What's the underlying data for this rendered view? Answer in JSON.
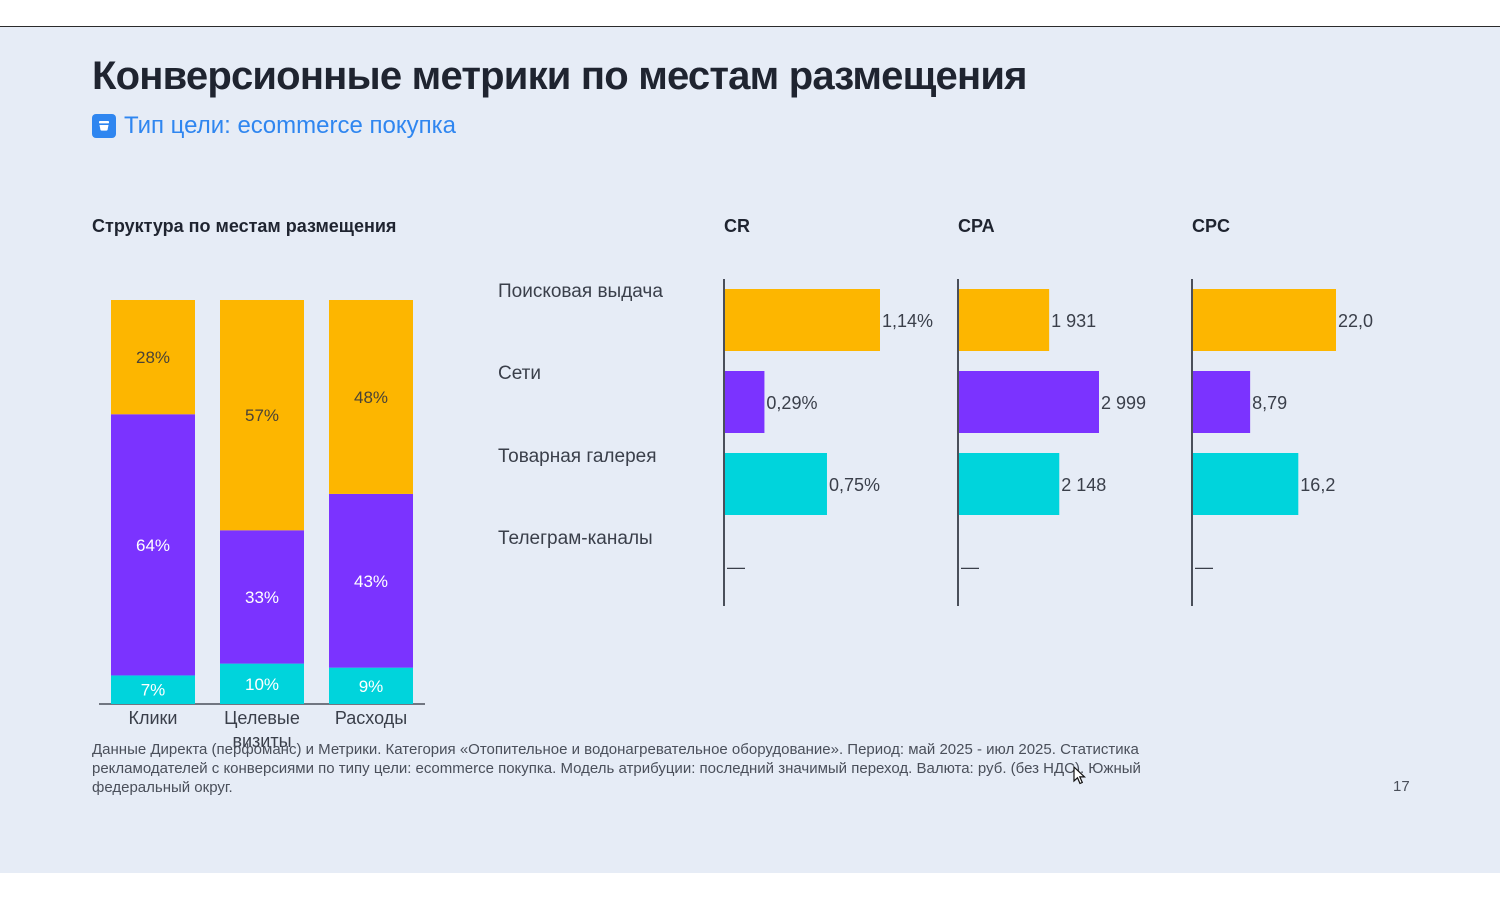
{
  "title": "Конверсионные метрики по местам размещения",
  "goal_label": "Тип цели: ecommerce покупка",
  "colors": {
    "search": "#fdb600",
    "networks": "#7b33ff",
    "gallery": "#00d4dc",
    "axis": "#4a4f5a",
    "accent": "#2f86f0"
  },
  "icons": [
    "cart-icon",
    "mouse-cursor-icon"
  ],
  "chart_data": [
    {
      "type": "bar",
      "stacked": true,
      "percent": true,
      "title": "Структура по местам размещения",
      "categories": [
        "Клики",
        "Целевые визиты",
        "Расходы"
      ],
      "series": [
        {
          "key": "gallery",
          "values": [
            7,
            10,
            9
          ]
        },
        {
          "key": "networks",
          "values": [
            64,
            33,
            43
          ]
        },
        {
          "key": "search",
          "values": [
            28,
            57,
            48
          ]
        }
      ],
      "data_labels": [
        [
          "7%",
          "10%",
          "9%"
        ],
        [
          "64%",
          "33%",
          "43%"
        ],
        [
          "28%",
          "57%",
          "48%"
        ]
      ]
    },
    {
      "type": "bar",
      "orientation": "horizontal",
      "categories": [
        "Поисковая выдача",
        "Сети",
        "Товарная галерея",
        "Телеграм-каналы"
      ],
      "category_keys": [
        "search",
        "networks",
        "gallery",
        "telegram"
      ],
      "panels": [
        {
          "title": "CR",
          "unit": "%",
          "values": [
            1.14,
            0.29,
            0.75,
            null
          ],
          "labels": [
            "1,14%",
            "0,29%",
            "0,75%",
            "—"
          ],
          "xlim": [
            0,
            1.14
          ]
        },
        {
          "title": "CPA",
          "unit": "руб.",
          "values": [
            1931,
            2999,
            2148,
            null
          ],
          "labels": [
            "1 931",
            "2 999",
            "2 148",
            "—"
          ],
          "xlim": [
            0,
            2999
          ]
        },
        {
          "title": "CPC",
          "unit": "руб.",
          "values": [
            22.0,
            8.79,
            16.2,
            null
          ],
          "labels": [
            "22,0",
            "8,79",
            "16,2",
            "—"
          ],
          "xlim": [
            0,
            22.0
          ]
        }
      ]
    }
  ],
  "footnote": "Данные Директа (перфоманс) и Метрики. Категория «Отопительное и водонагревательное оборудование». Период: май 2025 - июл 2025. Статистика рекламодателей с конверсиями по типу цели: ecommerce покупка. Модель атрибуции: последний значимый переход. Валюта: руб. (без НДС). Южный федеральный округ.",
  "page_number": "17"
}
